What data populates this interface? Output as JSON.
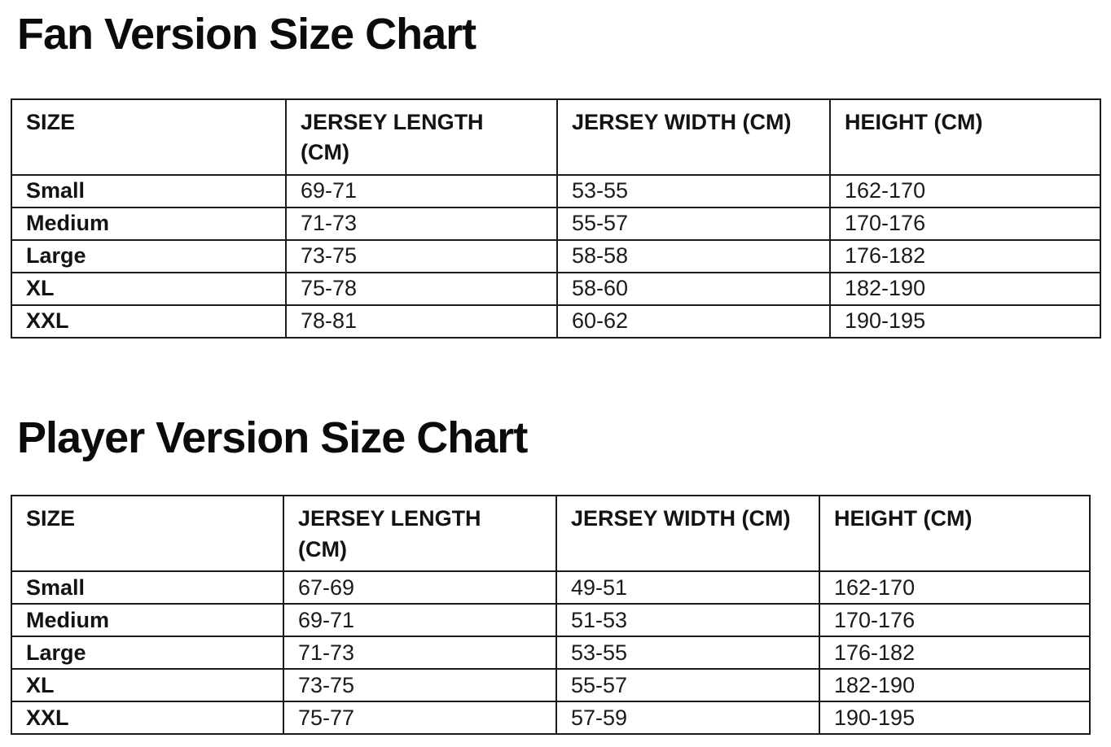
{
  "page": {
    "background_color": "#ffffff",
    "text_color": "#111111",
    "border_color": "#1c1c1c"
  },
  "fan_chart": {
    "title": "Fan Version Size Chart",
    "columns": [
      "SIZE",
      "JERSEY LENGTH (CM)",
      "JERSEY WIDTH (CM)",
      "HEIGHT (CM)"
    ],
    "rows": [
      [
        "Small",
        "69-71",
        "53-55",
        "162-170"
      ],
      [
        "Medium",
        "71-73",
        "55-57",
        "170-176"
      ],
      [
        "Large",
        "73-75",
        "58-58",
        "176-182"
      ],
      [
        "XL",
        "75-78",
        "58-60",
        "182-190"
      ],
      [
        "XXL",
        "78-81",
        "60-62",
        "190-195"
      ]
    ]
  },
  "player_chart": {
    "title": "Player Version Size Chart",
    "columns": [
      "SIZE",
      "JERSEY LENGTH (CM)",
      "JERSEY WIDTH (CM)",
      "HEIGHT (CM)"
    ],
    "rows": [
      [
        "Small",
        "67-69",
        "49-51",
        "162-170"
      ],
      [
        "Medium",
        "69-71",
        "51-53",
        "170-176"
      ],
      [
        "Large",
        "71-73",
        "53-55",
        "176-182"
      ],
      [
        "XL",
        "73-75",
        "55-57",
        "182-190"
      ],
      [
        "XXL",
        "75-77",
        "57-59",
        "190-195"
      ]
    ]
  }
}
